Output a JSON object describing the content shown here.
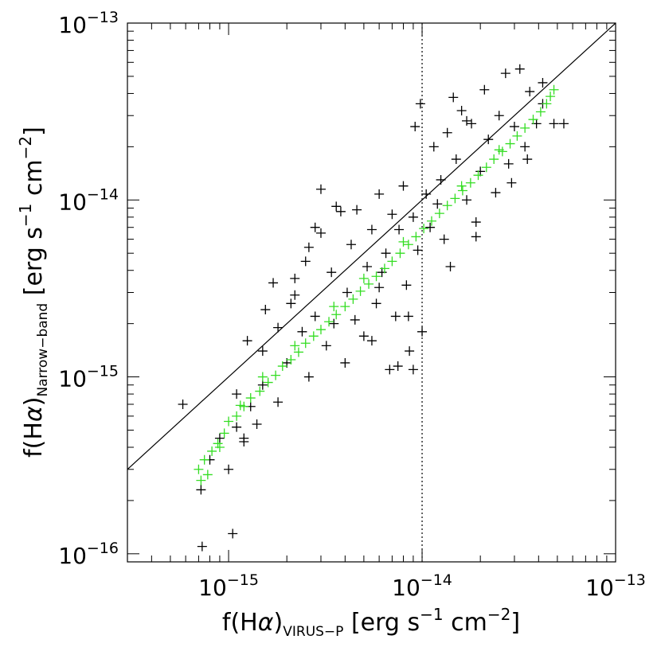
{
  "chart_data": {
    "type": "scatter",
    "x_axis": {
      "scale": "log",
      "range": [
        3e-16,
        1e-13
      ],
      "ticks": [
        {
          "value": 1e-15,
          "base": "10",
          "exp": "−15"
        },
        {
          "value": 1e-14,
          "base": "10",
          "exp": "−14"
        },
        {
          "value": 1e-13,
          "base": "10",
          "exp": "−13"
        }
      ],
      "label": {
        "prefix": "f(H",
        "greek": "α",
        "close": ")",
        "sub": "VIRUS−P",
        "units_a": " [erg s",
        "sup_a": "−1",
        "units_b": " cm",
        "sup_b": "−2",
        "units_c": "]"
      }
    },
    "y_axis": {
      "scale": "log",
      "range": [
        9e-17,
        1e-13
      ],
      "ticks": [
        {
          "value": 1e-16,
          "base": "10",
          "exp": "−16"
        },
        {
          "value": 1e-15,
          "base": "10",
          "exp": "−15"
        },
        {
          "value": 1e-14,
          "base": "10",
          "exp": "−14"
        },
        {
          "value": 1e-13,
          "base": "10",
          "exp": "−13"
        }
      ],
      "label": {
        "prefix": "f(H",
        "greek": "α",
        "close": ")",
        "sub": "Narrow−band",
        "units_a": " [erg s",
        "sup_a": "−1",
        "units_b": " cm",
        "sup_b": "−2",
        "units_c": "]"
      }
    },
    "one_to_one_line": {
      "from": [
        3e-16,
        3e-16
      ],
      "to": [
        1e-13,
        1e-13
      ],
      "color": "#000000"
    },
    "reference_line": {
      "x": 1e-14,
      "style": "dotted",
      "color": "#000000"
    },
    "grid": false,
    "legend": "none",
    "series": [
      {
        "marker": "+",
        "color": "#000000",
        "points": [
          [
            5.8e-16,
            7e-16
          ],
          [
            7.3e-16,
            1.1e-16
          ],
          [
            1.05e-15,
            1.3e-16
          ],
          [
            7.2e-16,
            2.3e-16
          ],
          [
            8e-16,
            3.4e-16
          ],
          [
            9e-16,
            4.5e-16
          ],
          [
            1e-15,
            3e-16
          ],
          [
            1.1e-15,
            5.2e-16
          ],
          [
            1.2e-15,
            4.3e-16
          ],
          [
            1.3e-15,
            6.8e-16
          ],
          [
            1.4e-15,
            5.4e-16
          ],
          [
            1.5e-15,
            1.4e-15
          ],
          [
            1.55e-15,
            2.4e-15
          ],
          [
            1.7e-15,
            3.4e-15
          ],
          [
            1.8e-15,
            1.9e-15
          ],
          [
            2e-15,
            1.2e-15
          ],
          [
            2.1e-15,
            2.6e-15
          ],
          [
            2.2e-15,
            3.6e-15
          ],
          [
            2.4e-15,
            1.8e-15
          ],
          [
            2.5e-15,
            4.5e-15
          ],
          [
            2.6e-15,
            1e-15
          ],
          [
            2.8e-15,
            2.2e-15
          ],
          [
            3e-15,
            1.15e-14
          ],
          [
            3e-15,
            6.5e-15
          ],
          [
            3.2e-15,
            1.5e-15
          ],
          [
            3.4e-15,
            3.9e-15
          ],
          [
            3.5e-15,
            2e-15
          ],
          [
            3.8e-15,
            8.6e-15
          ],
          [
            4e-15,
            1.2e-15
          ],
          [
            4.1e-15,
            3e-15
          ],
          [
            4.3e-15,
            5.6e-15
          ],
          [
            4.5e-15,
            2.1e-15
          ],
          [
            4.6e-15,
            8.8e-15
          ],
          [
            5e-15,
            1.7e-15
          ],
          [
            5.2e-15,
            4.2e-15
          ],
          [
            5.5e-15,
            6.8e-15
          ],
          [
            5.8e-15,
            2.6e-15
          ],
          [
            6e-15,
            1.08e-14
          ],
          [
            6.2e-15,
            3.9e-15
          ],
          [
            6.5e-15,
            5e-15
          ],
          [
            6.8e-15,
            1.1e-15
          ],
          [
            7e-15,
            8.3e-15
          ],
          [
            7.3e-15,
            2.2e-15
          ],
          [
            7.6e-15,
            6.8e-15
          ],
          [
            8e-15,
            1.2e-14
          ],
          [
            8.3e-15,
            3.3e-15
          ],
          [
            8.6e-15,
            1.4e-15
          ],
          [
            9e-15,
            8e-15
          ],
          [
            9.2e-15,
            2.6e-14
          ],
          [
            9.5e-15,
            5.2e-15
          ],
          [
            9.8e-15,
            3.5e-14
          ],
          [
            1.05e-14,
            1.08e-14
          ],
          [
            1.1e-14,
            7e-15
          ],
          [
            1.15e-14,
            2e-14
          ],
          [
            1.2e-14,
            9.5e-15
          ],
          [
            1.3e-14,
            6e-15
          ],
          [
            1.35e-14,
            2.4e-14
          ],
          [
            1.4e-14,
            4.2e-15
          ],
          [
            1.5e-14,
            1.7e-14
          ],
          [
            1.6e-14,
            3.2e-14
          ],
          [
            1.7e-14,
            1e-14
          ],
          [
            1.8e-14,
            2.7e-14
          ],
          [
            1.9e-14,
            7.5e-15
          ],
          [
            2e-14,
            1.45e-14
          ],
          [
            2.1e-14,
            4.2e-14
          ],
          [
            2.2e-14,
            2.2e-14
          ],
          [
            2.4e-14,
            1.1e-14
          ],
          [
            2.5e-14,
            3e-14
          ],
          [
            2.7e-14,
            5.2e-14
          ],
          [
            2.8e-14,
            1.6e-14
          ],
          [
            3e-14,
            2.6e-14
          ],
          [
            3.2e-14,
            5.5e-14
          ],
          [
            3.4e-14,
            2e-14
          ],
          [
            3.6e-14,
            4.1e-14
          ],
          [
            3.9e-14,
            2.7e-14
          ],
          [
            4.2e-14,
            3.5e-14
          ],
          [
            4.8e-14,
            2.7e-14
          ],
          [
            5.4e-14,
            2.7e-14
          ],
          [
            4.2e-14,
            4.6e-14
          ],
          [
            1e-14,
            1.8e-15
          ],
          [
            9e-15,
            1.1e-15
          ],
          [
            7.5e-15,
            1.15e-15
          ],
          [
            6e-15,
            3.2e-15
          ],
          [
            2.6e-15,
            5.4e-15
          ],
          [
            2.2e-15,
            2.9e-15
          ],
          [
            1.8e-15,
            7.2e-16
          ],
          [
            1.5e-15,
            9e-16
          ],
          [
            1.2e-15,
            4.5e-16
          ],
          [
            1.1e-15,
            8e-16
          ],
          [
            1.25e-15,
            1.6e-15
          ],
          [
            2.8e-15,
            7e-15
          ],
          [
            3.6e-15,
            9.2e-15
          ],
          [
            5.5e-15,
            1.6e-15
          ],
          [
            8.5e-15,
            2.2e-15
          ],
          [
            1.25e-14,
            1.3e-14
          ],
          [
            1.45e-14,
            3.8e-14
          ],
          [
            2.9e-14,
            1.25e-14
          ],
          [
            3.5e-14,
            1.7e-14
          ],
          [
            1.7e-14,
            2.8e-14
          ],
          [
            1.9e-14,
            6.2e-15
          ]
        ]
      },
      {
        "marker": "+",
        "color": "#33dd22",
        "points": [
          [
            7e-16,
            3e-16
          ],
          [
            7.5e-16,
            3.4e-16
          ],
          [
            7.8e-16,
            2.8e-16
          ],
          [
            8.2e-16,
            3.8e-16
          ],
          [
            8.8e-16,
            4.2e-16
          ],
          [
            9.5e-16,
            4.8e-16
          ],
          [
            1e-15,
            5.6e-16
          ],
          [
            1.1e-15,
            6e-16
          ],
          [
            1.2e-15,
            6.8e-16
          ],
          [
            1.3e-15,
            7.6e-16
          ],
          [
            1.45e-15,
            8.3e-16
          ],
          [
            1.6e-15,
            9.3e-16
          ],
          [
            1.75e-15,
            1.02e-15
          ],
          [
            1.9e-15,
            1.15e-15
          ],
          [
            2.1e-15,
            1.25e-15
          ],
          [
            2.3e-15,
            1.38e-15
          ],
          [
            2.5e-15,
            1.55e-15
          ],
          [
            2.75e-15,
            1.7e-15
          ],
          [
            3e-15,
            1.85e-15
          ],
          [
            3.3e-15,
            2.05e-15
          ],
          [
            3.6e-15,
            2.25e-15
          ],
          [
            4e-15,
            2.5e-15
          ],
          [
            4.4e-15,
            2.75e-15
          ],
          [
            4.8e-15,
            3.05e-15
          ],
          [
            5.3e-15,
            3.35e-15
          ],
          [
            5.8e-15,
            3.7e-15
          ],
          [
            6.4e-15,
            4.1e-15
          ],
          [
            7e-15,
            4.5e-15
          ],
          [
            7.7e-15,
            5e-15
          ],
          [
            8.5e-15,
            5.6e-15
          ],
          [
            9.3e-15,
            6.2e-15
          ],
          [
            1.02e-14,
            6.9e-15
          ],
          [
            1.12e-14,
            7.6e-15
          ],
          [
            1.23e-14,
            8.4e-15
          ],
          [
            1.35e-14,
            9.3e-15
          ],
          [
            1.48e-14,
            1.02e-14
          ],
          [
            1.62e-14,
            1.13e-14
          ],
          [
            1.78e-14,
            1.25e-14
          ],
          [
            1.95e-14,
            1.38e-14
          ],
          [
            2.15e-14,
            1.53e-14
          ],
          [
            2.35e-14,
            1.7e-14
          ],
          [
            2.6e-14,
            1.88e-14
          ],
          [
            2.85e-14,
            2.08e-14
          ],
          [
            3.1e-14,
            2.3e-14
          ],
          [
            3.4e-14,
            2.55e-14
          ],
          [
            3.75e-14,
            2.85e-14
          ],
          [
            4.1e-14,
            3.15e-14
          ],
          [
            4.4e-14,
            3.5e-14
          ],
          [
            4.6e-14,
            3.85e-14
          ],
          [
            4.8e-14,
            4.2e-14
          ],
          [
            1.5e-15,
            1e-15
          ],
          [
            2.2e-15,
            1.5e-15
          ],
          [
            3.5e-15,
            2.5e-15
          ],
          [
            5e-15,
            3.6e-15
          ],
          [
            8e-15,
            5.8e-15
          ],
          [
            1.6e-14,
            1.2e-14
          ],
          [
            2.5e-14,
            1.92e-14
          ],
          [
            7.2e-16,
            2.6e-16
          ],
          [
            9e-16,
            4e-16
          ],
          [
            1.15e-15,
            6.9e-16
          ]
        ]
      }
    ]
  }
}
